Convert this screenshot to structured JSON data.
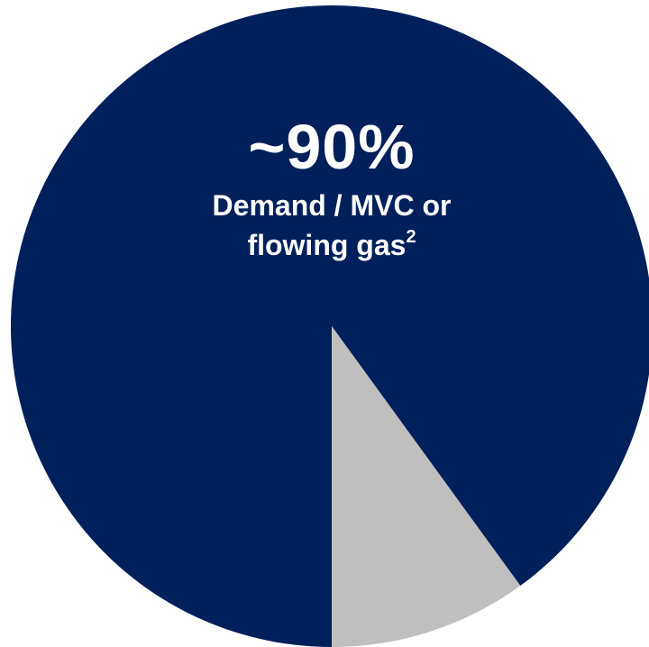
{
  "chart_data": {
    "type": "pie",
    "slices": [
      {
        "label": "Demand / MVC or flowing gas",
        "value": 90,
        "color": "#00205b"
      },
      {
        "label": "",
        "value": 10,
        "color": "#bfbfbf"
      }
    ],
    "annotations": [
      {
        "value_text": "~90%",
        "line1": "Demand / MVC or",
        "line2": "flowing gas",
        "footnote": "2"
      }
    ]
  }
}
